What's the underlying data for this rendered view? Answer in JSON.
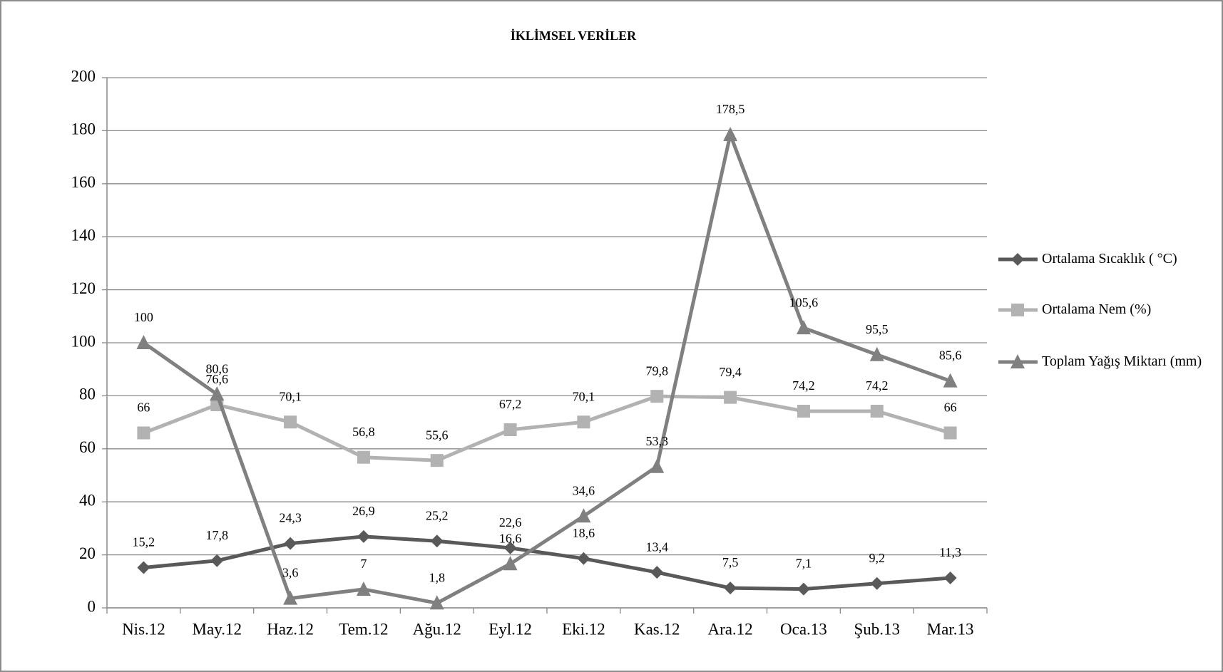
{
  "chart_data": {
    "type": "line",
    "title": "İKLİMSEL VERİLER",
    "categories": [
      "Nis.12",
      "May.12",
      "Haz.12",
      "Tem.12",
      "Ağu.12",
      "Eyl.12",
      "Eki.12",
      "Kas.12",
      "Ara.12",
      "Oca.13",
      "Şub.13",
      "Mar.13"
    ],
    "series": [
      {
        "name": "Ortalama Sıcaklık ( °C)",
        "color": "#595959",
        "marker": "diamond",
        "values": [
          15.2,
          17.8,
          24.3,
          26.9,
          25.2,
          22.6,
          18.6,
          13.4,
          7.5,
          7.1,
          9.2,
          11.3
        ],
        "value_labels": [
          "15,2",
          "17,8",
          "24,3",
          "26,9",
          "25,2",
          "22,6",
          "18,6",
          "13,4",
          "7,5",
          "7,1",
          "9,2",
          "11,3"
        ]
      },
      {
        "name": "Ortalama Nem (%)",
        "color": "#b2b2b2",
        "marker": "square",
        "values": [
          66,
          76.6,
          70.1,
          56.8,
          55.6,
          67.2,
          70.1,
          79.8,
          79.4,
          74.2,
          74.2,
          66
        ],
        "value_labels": [
          "66",
          "76,6",
          "70,1",
          "56,8",
          "55,6",
          "67,2",
          "70,1",
          "79,8",
          "79,4",
          "74,2",
          "74,2",
          "66"
        ]
      },
      {
        "name": "Toplam Yağış Miktarı (mm)",
        "color": "#808080",
        "marker": "triangle",
        "values": [
          100,
          80.6,
          3.6,
          7,
          1.8,
          16.6,
          34.6,
          53.3,
          178.5,
          105.6,
          95.5,
          85.6
        ],
        "value_labels": [
          "100",
          "80,6",
          "3,6",
          "7",
          "1,8",
          "16,6",
          "34,6",
          "53,3",
          "178,5",
          "105,6",
          "95,5",
          "85,6"
        ]
      }
    ],
    "ylim": [
      0,
      200
    ],
    "yticks": [
      0,
      20,
      40,
      60,
      80,
      100,
      120,
      140,
      160,
      180,
      200
    ],
    "grid": true,
    "legend": "right"
  }
}
